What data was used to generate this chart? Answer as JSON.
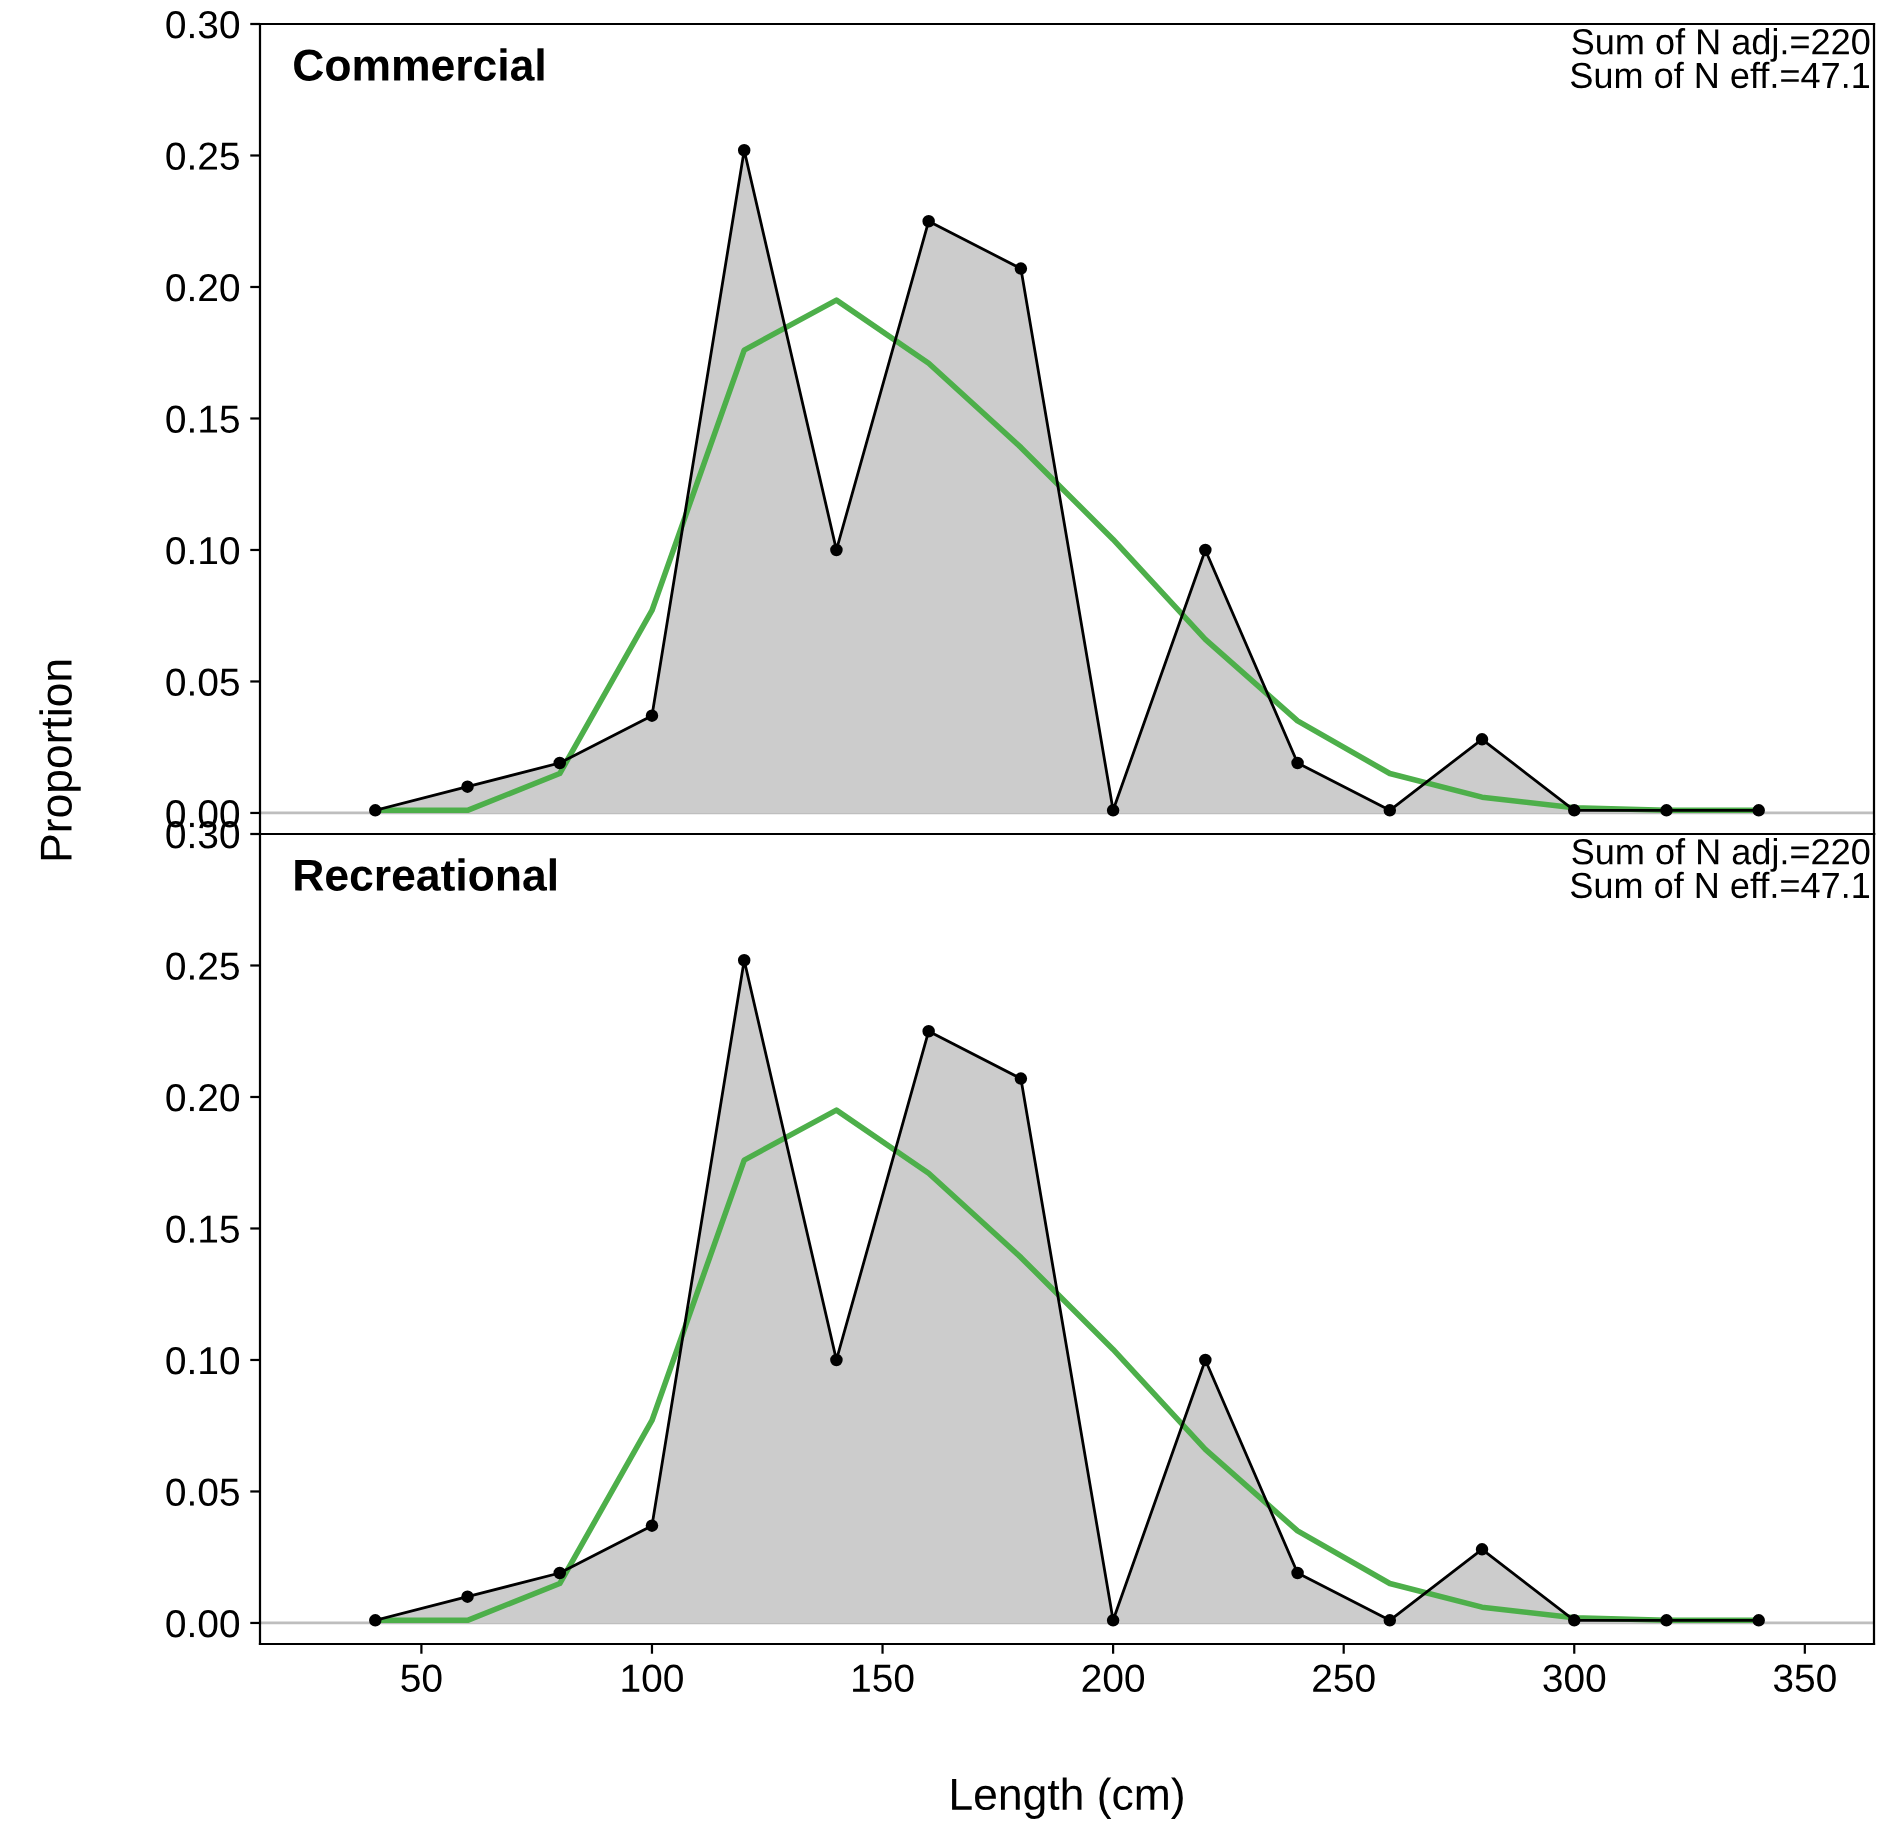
{
  "chart_data": [
    {
      "type": "area",
      "title": "Commercial",
      "ylabel": "Proportion",
      "annotations": [
        "Sum of N adj.=220",
        "Sum of N eff.=47.1"
      ],
      "x": [
        40,
        60,
        80,
        100,
        120,
        140,
        160,
        180,
        200,
        220,
        240,
        260,
        280,
        300,
        320,
        340
      ],
      "xlim": [
        15,
        365
      ],
      "ylim": [
        -0.008,
        0.3
      ],
      "yticks": [
        {
          "value": 0,
          "label": "0.00"
        },
        {
          "value": 0.05,
          "label": "0.05"
        },
        {
          "value": 0.1,
          "label": "0.10"
        },
        {
          "value": 0.15,
          "label": "0.15"
        },
        {
          "value": 0.2,
          "label": "0.20"
        },
        {
          "value": 0.25,
          "label": "0.25"
        },
        {
          "value": 0.3,
          "label": "0.30"
        }
      ],
      "tick_labels": "y",
      "grid": false,
      "ref_lines": [
        {
          "axis": "y",
          "value": 0,
          "color": "#bebebe"
        }
      ],
      "series": [
        {
          "color": "#cccccc",
          "marker": "circle",
          "values": [
            0.001,
            0.01,
            0.019,
            0.037,
            0.252,
            0.1,
            0.225,
            0.207,
            0.001,
            0.1,
            0.019,
            0.001,
            0.028,
            0.001,
            0.001,
            0.001
          ]
        },
        {
          "type": "line",
          "color": "#4daf4a",
          "values": [
            0.001,
            0.001,
            0.015,
            0.077,
            0.176,
            0.195,
            0.171,
            0.139,
            0.104,
            0.066,
            0.035,
            0.015,
            0.006,
            0.002,
            0.001,
            0.001
          ]
        }
      ]
    },
    {
      "type": "area",
      "title": "Recreational",
      "xlabel": "Length (cm)",
      "annotations": [
        "Sum of N adj.=220",
        "Sum of N eff.=47.1"
      ],
      "x": [
        40,
        60,
        80,
        100,
        120,
        140,
        160,
        180,
        200,
        220,
        240,
        260,
        280,
        300,
        320,
        340
      ],
      "xlim": [
        15,
        365
      ],
      "xticks": [
        50,
        100,
        150,
        200,
        250,
        300,
        350
      ],
      "ylim": [
        -0.008,
        0.3
      ],
      "yticks": [
        {
          "value": 0,
          "label": "0.00"
        },
        {
          "value": 0.05,
          "label": "0.05"
        },
        {
          "value": 0.1,
          "label": "0.10"
        },
        {
          "value": 0.15,
          "label": "0.15"
        },
        {
          "value": 0.2,
          "label": "0.20"
        },
        {
          "value": 0.25,
          "label": "0.25"
        },
        {
          "value": 0.3,
          "label": "0.30"
        }
      ],
      "grid": false,
      "ref_lines": [
        {
          "axis": "y",
          "value": 0,
          "color": "#bebebe"
        }
      ],
      "series": [
        {
          "color": "#cccccc",
          "marker": "circle",
          "values": [
            0.001,
            0.01,
            0.019,
            0.037,
            0.252,
            0.1,
            0.225,
            0.207,
            0.001,
            0.1,
            0.019,
            0.001,
            0.028,
            0.001,
            0.001,
            0.001
          ]
        },
        {
          "type": "line",
          "color": "#4daf4a",
          "values": [
            0.001,
            0.001,
            0.015,
            0.077,
            0.176,
            0.195,
            0.171,
            0.139,
            0.104,
            0.066,
            0.035,
            0.015,
            0.006,
            0.002,
            0.001,
            0.001
          ]
        }
      ]
    }
  ]
}
